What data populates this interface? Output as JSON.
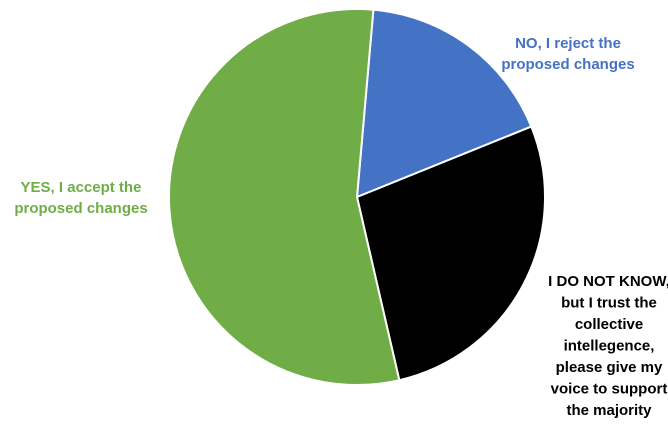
{
  "chart_data": {
    "type": "pie",
    "title": "",
    "slices": [
      {
        "label": "NO, I reject the proposed changes",
        "label_lines": [
          "NO, I reject the",
          "proposed changes"
        ],
        "value": 17.5,
        "color": "#4472C4",
        "label_color": "#4472C4"
      },
      {
        "label": "I DO NOT KNOW, but I trust the collective intellegence, please give my voice to support the majority",
        "label_lines": [
          "I DO NOT KNOW,",
          "but I trust the",
          "collective",
          "intellegence,",
          "please give my",
          "voice to support",
          "the majority"
        ],
        "value": 27.5,
        "color": "#000000",
        "label_color": "#000000"
      },
      {
        "label": "YES, I accept the proposed changes",
        "label_lines": [
          "YES, I accept the",
          "proposed changes"
        ],
        "value": 55,
        "color": "#70AD47",
        "label_color": "#70AD47"
      }
    ],
    "start_angle_deg": 5,
    "direction": "clockwise",
    "legend": "none"
  }
}
